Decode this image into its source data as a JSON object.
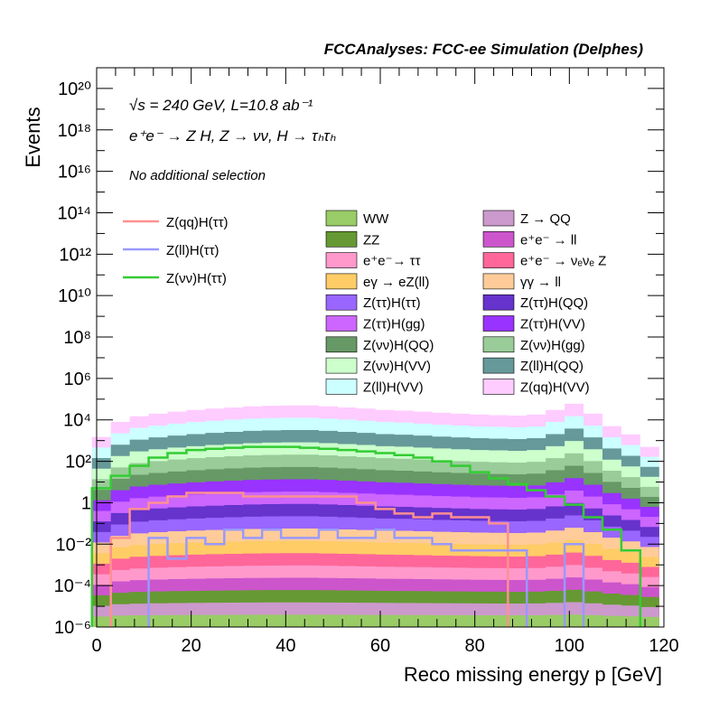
{
  "header": {
    "title": "FCCAnalyses: FCC-ee Simulation (Delphes)"
  },
  "annotations": {
    "line1": "√s = 240 GeV, L=10.8 ab⁻¹",
    "line2": "e⁺e⁻ → Z H, Z → νν, H → τₕτₕ",
    "line3": "No additional selection"
  },
  "chart_data": {
    "type": "area",
    "stacked_histogram": true,
    "title": "",
    "xlabel": "Reco missing energy p [GeV]",
    "ylabel": "Events",
    "xlim": [
      0,
      120
    ],
    "ylim": [
      1e-06,
      1e+21
    ],
    "y_scale": "log",
    "x_ticks": [
      0,
      20,
      40,
      60,
      80,
      100,
      120
    ],
    "y_tick_labels": [
      "10⁻⁶",
      "10⁻⁴",
      "10⁻²",
      "1",
      "10²",
      "10⁴",
      "10⁶",
      "10⁸",
      "10¹⁰",
      "10¹²",
      "10¹⁴",
      "10¹⁶",
      "10¹⁸",
      "10²⁰"
    ],
    "legend_placement": "center-right",
    "bin_centers": [
      1,
      5,
      9,
      13,
      17,
      21,
      25,
      29,
      33,
      37,
      41,
      45,
      49,
      53,
      57,
      61,
      65,
      69,
      73,
      77,
      81,
      85,
      89,
      93,
      97,
      101,
      105,
      109,
      113,
      117
    ],
    "stack_totals": [
      1500,
      8000,
      15000,
      20000,
      25000,
      30000,
      35000,
      40000,
      45000,
      48000,
      50000,
      50000,
      45000,
      40000,
      35000,
      30000,
      28000,
      25000,
      22000,
      20000,
      18000,
      17000,
      16000,
      18000,
      30000,
      60000,
      20000,
      5000,
      2000,
      500
    ],
    "signal_lines": [
      {
        "name": "Z(qq)H(ττ)",
        "color": "#ff9090",
        "values": [
          null,
          0.02,
          0.5,
          1,
          2,
          3,
          3,
          3,
          2,
          2,
          2,
          2,
          2,
          2,
          1,
          0.5,
          0.3,
          0.2,
          0.3,
          0.2,
          0.2,
          0.1,
          null,
          null,
          null,
          null,
          null,
          null,
          null,
          null
        ]
      },
      {
        "name": "Z(ll)H(ττ)",
        "color": "#9999ff",
        "values": [
          null,
          null,
          null,
          0.02,
          0.002,
          0.02,
          0.01,
          0.05,
          0.02,
          0.05,
          0.02,
          0.02,
          0.05,
          0.02,
          0.02,
          0.05,
          0.02,
          0.02,
          0.01,
          0.005,
          0.005,
          0.005,
          0.005,
          null,
          null,
          0.01,
          null,
          null,
          null,
          null
        ]
      },
      {
        "name": "Z(νν)H(ττ)",
        "color": "#33cc33",
        "values": [
          5,
          20,
          60,
          150,
          250,
          350,
          400,
          450,
          500,
          500,
          500,
          450,
          400,
          350,
          300,
          250,
          200,
          150,
          100,
          60,
          30,
          15,
          8,
          4,
          2,
          0.8,
          0.2,
          0.05,
          0.005,
          null
        ]
      }
    ],
    "legend_left": [
      {
        "label": "Z(qq)H(ττ)",
        "color": "#ff9090"
      },
      {
        "label": "Z(ll)H(ττ)",
        "color": "#9999ff"
      },
      {
        "label": "Z(νν)H(ττ)",
        "color": "#33cc33"
      }
    ],
    "backgrounds": [
      {
        "label": "WW",
        "color": "#99cc66"
      },
      {
        "label": "Z → QQ",
        "color": "#cc99cc"
      },
      {
        "label": "ZZ",
        "color": "#669933"
      },
      {
        "label": "e⁺e⁻ → ll",
        "color": "#cc55cc"
      },
      {
        "label": "e⁺e⁻→ ττ",
        "color": "#ff99cc"
      },
      {
        "label": "e⁺e⁻ → νₑνₑ Z",
        "color": "#ff6699"
      },
      {
        "label": "eγ → eZ(ll)",
        "color": "#ffcc66"
      },
      {
        "label": "γγ → ll",
        "color": "#ffcc99"
      },
      {
        "label": "Z(ττ)H(ττ)",
        "color": "#9966ff"
      },
      {
        "label": "Z(ττ)H(QQ)",
        "color": "#6633cc"
      },
      {
        "label": "Z(ττ)H(gg)",
        "color": "#cc66ff"
      },
      {
        "label": "Z(ττ)H(VV)",
        "color": "#9933ff"
      },
      {
        "label": "Z(νν)H(QQ)",
        "color": "#669966"
      },
      {
        "label": "Z(νν)H(gg)",
        "color": "#99cc99"
      },
      {
        "label": "Z(νν)H(VV)",
        "color": "#ccffcc"
      },
      {
        "label": "Z(ll)H(QQ)",
        "color": "#669999"
      },
      {
        "label": "Z(ll)H(VV)",
        "color": "#ccffff"
      },
      {
        "label": "Z(qq)H(VV)",
        "color": "#ffccff"
      }
    ]
  }
}
